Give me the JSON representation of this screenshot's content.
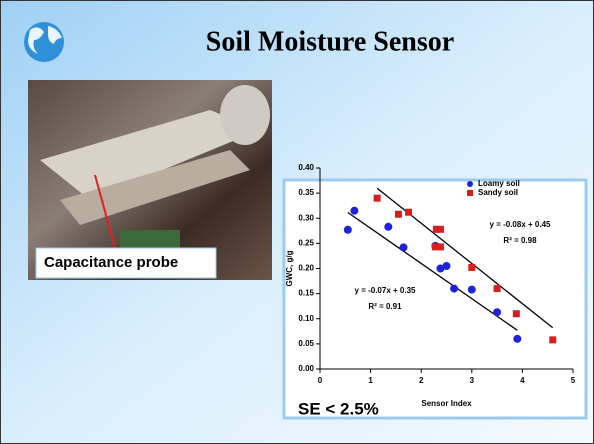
{
  "slide": {
    "title": "Soil Moisture Sensor",
    "photo_label": "Capacitance probe",
    "note": "SE < 2.5%"
  },
  "chart_data": {
    "type": "scatter",
    "x_label": "Sensor Index",
    "y_label": "GWC, g/g",
    "xlim": [
      0,
      5
    ],
    "xticks": [
      0,
      1,
      2,
      3,
      4,
      5
    ],
    "ylim": [
      0,
      0.4
    ],
    "yticks": [
      {
        "value": 0,
        "label": "0.00"
      },
      {
        "value": 0.05,
        "label": "0.05"
      },
      {
        "value": 0.1,
        "label": "0.10"
      },
      {
        "value": 0.15,
        "label": "0.15"
      },
      {
        "value": 0.2,
        "label": "0.20"
      },
      {
        "value": 0.25,
        "label": "0.25"
      },
      {
        "value": 0.3,
        "label": "0.30"
      },
      {
        "value": 0.35,
        "label": "0.35"
      },
      {
        "value": 0.4,
        "label": "0.40"
      }
    ],
    "legend": "top-right",
    "series": [
      {
        "name": "Loamy soil",
        "color": "#1e22d8",
        "marker": "circle",
        "x": [
          0.55,
          0.68,
          1.35,
          1.65,
          2.28,
          2.38,
          2.5,
          2.65,
          3.0,
          3.5,
          3.9
        ],
        "values": [
          0.277,
          0.315,
          0.283,
          0.242,
          0.245,
          0.2,
          0.205,
          0.16,
          0.158,
          0.113,
          0.06
        ],
        "trendline": {
          "slope": -0.07,
          "intercept": 0.35,
          "equation": "y = -0.07x + 0.35",
          "r2": "R² = 0.91"
        }
      },
      {
        "name": "Sandy soil",
        "color": "#d81e1e",
        "marker": "square",
        "x": [
          1.13,
          1.55,
          1.75,
          2.3,
          2.38,
          2.28,
          2.38,
          3.0,
          3.5,
          3.88,
          4.6
        ],
        "values": [
          0.34,
          0.308,
          0.312,
          0.278,
          0.278,
          0.243,
          0.243,
          0.202,
          0.16,
          0.11,
          0.058
        ],
        "trendline": {
          "slope": -0.08,
          "intercept": 0.45,
          "equation": "y = -0.08x + 0.45",
          "r2": "R² = 0.98"
        }
      }
    ]
  }
}
